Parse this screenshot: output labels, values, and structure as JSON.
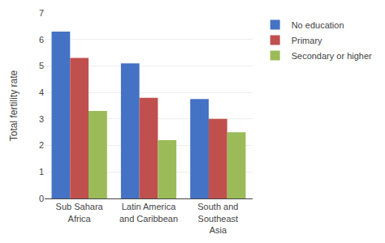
{
  "chart_data": {
    "type": "bar",
    "categories": [
      "Sub Sahara\nAfrica",
      "Latin America\nand Caribbean",
      "South and\nSoutheast\nAsia"
    ],
    "series": [
      {
        "name": "No education",
        "color": "#4472C4",
        "values": [
          6.3,
          5.1,
          3.75
        ]
      },
      {
        "name": "Primary",
        "color": "#C0504D",
        "values": [
          5.3,
          3.8,
          3.0
        ]
      },
      {
        "name": "Secondary or higher",
        "color": "#9BBB59",
        "values": [
          3.3,
          2.2,
          2.5
        ]
      }
    ],
    "y_label": "Total fertility rate",
    "ylim": [
      0,
      7
    ],
    "yticks": [
      0,
      1,
      2,
      3,
      4,
      5,
      6,
      7
    ],
    "grid": true,
    "legend": "right"
  }
}
